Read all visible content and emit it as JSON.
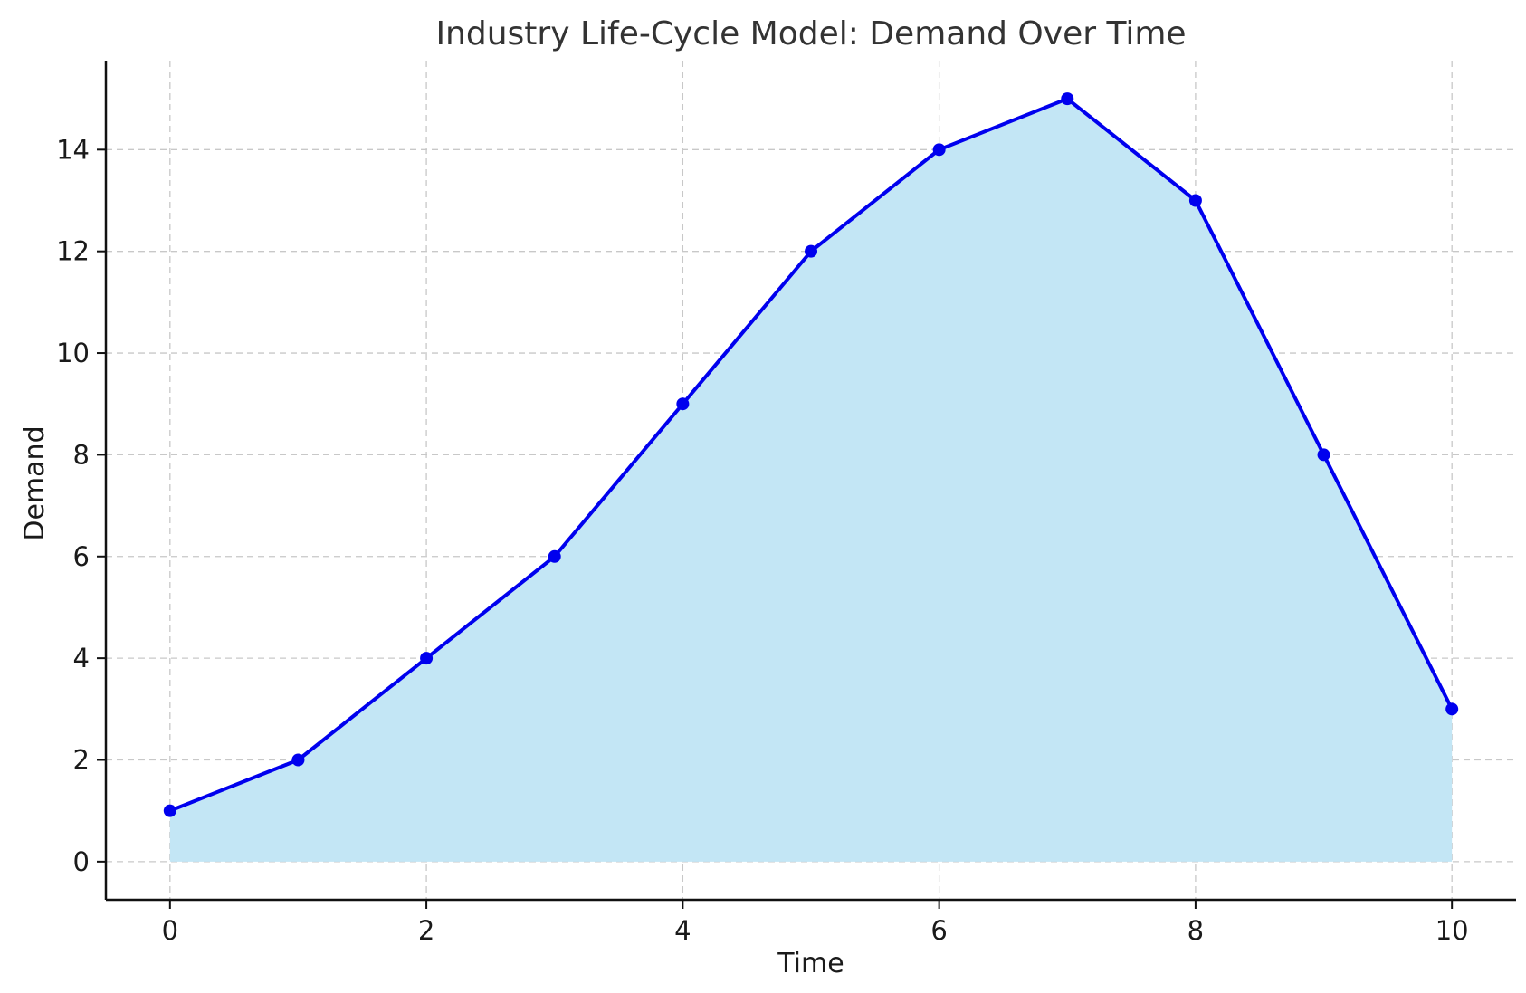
{
  "chart_data": {
    "type": "area",
    "title": "Industry Life-Cycle Model: Demand Over Time",
    "xlabel": "Time",
    "ylabel": "Demand",
    "x": [
      0,
      1,
      2,
      3,
      4,
      5,
      6,
      7,
      8,
      9,
      10
    ],
    "series": [
      {
        "values": [
          1,
          2,
          4,
          6,
          9,
          12,
          14,
          15,
          13,
          8,
          3
        ],
        "line_color": "#0000ee",
        "fill_color": "#c3e6f5",
        "marker": "circle"
      }
    ],
    "xlim": [
      -0.5,
      10.5
    ],
    "ylim": [
      -0.75,
      15.75
    ],
    "xticks": [
      0,
      2,
      4,
      6,
      8,
      10
    ],
    "yticks": [
      0,
      2,
      4,
      6,
      8,
      10,
      12,
      14
    ],
    "grid": true,
    "grid_style": "dashed"
  }
}
